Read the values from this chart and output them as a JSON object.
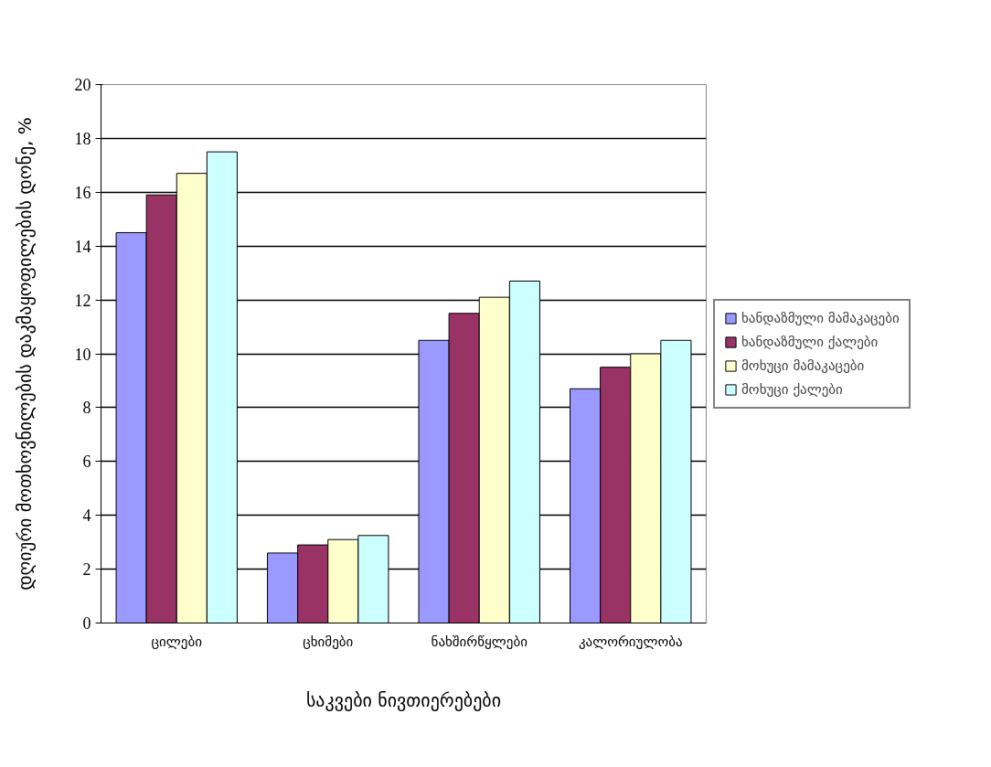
{
  "chart_data": {
    "type": "bar",
    "xlabel": "საკვები ნივთიერებები",
    "ylabel": "დღიური მოთხოვნილების დაკმაყოფილების დონე, %",
    "categories": [
      "ცილები",
      "ცხიმები",
      "ნახშირწყლები",
      "კალორიულობა"
    ],
    "series": [
      {
        "name": "ხანდაზმული მამაკაცები",
        "color": "#9999ff",
        "values": [
          14.5,
          2.6,
          10.5,
          8.7
        ]
      },
      {
        "name": "ხანდაზმული ქალები",
        "color": "#993366",
        "values": [
          15.9,
          2.9,
          11.5,
          9.5
        ]
      },
      {
        "name": "მოხუცი მამაკაცები",
        "color": "#ffffcc",
        "values": [
          16.7,
          3.1,
          12.1,
          10.0
        ]
      },
      {
        "name": "მოხუცი ქალები",
        "color": "#ccffff",
        "values": [
          17.5,
          3.25,
          12.7,
          10.5
        ]
      }
    ],
    "ylim": [
      0,
      20
    ],
    "yticks": [
      0,
      2,
      4,
      6,
      8,
      10,
      12,
      14,
      16,
      18,
      20
    ],
    "grid": "y",
    "legend": "right"
  }
}
